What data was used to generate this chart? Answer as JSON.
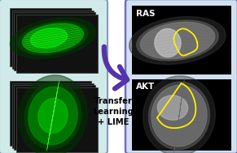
{
  "bg_color": "#ffffff",
  "left_panel_bg": "#d0eaea",
  "left_panel_border": "#8899bb",
  "right_panel_bg": "#d0e0f0",
  "right_panel_border": "#7070b8",
  "arrow_color": "#5533aa",
  "text_transfer": "Transfer\nLearning\n+ LIME",
  "text_color": "#000000",
  "label_ras": "RAS",
  "label_akt": "AKT",
  "label_color": "#ffffff",
  "yellow_outline": "#ffee00",
  "figsize": [
    2.91,
    1.89
  ],
  "dpi": 100
}
